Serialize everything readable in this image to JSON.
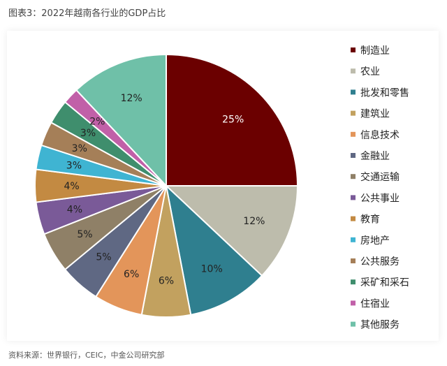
{
  "title": "图表3：2022年越南各行业的GDP占比",
  "source": "资料来源：世界银行，CEIC，中金公司研究部",
  "chart_data": {
    "type": "pie",
    "categories": [
      "制造业",
      "农业",
      "批发和零售",
      "建筑业",
      "信息技术",
      "金融业",
      "交通运输",
      "公共事业",
      "教育",
      "房地产",
      "公共服务",
      "采矿和采石",
      "住宿业",
      "其他服务"
    ],
    "values": [
      25,
      12,
      10,
      6,
      6,
      5,
      5,
      4,
      4,
      3,
      3,
      3,
      2,
      12
    ],
    "labels": [
      "25%",
      "12%",
      "10%",
      "6%",
      "6%",
      "5%",
      "5%",
      "4%",
      "4%",
      "3%",
      "3%",
      "3%",
      "2%",
      "12%"
    ],
    "colors": [
      "#6b0000",
      "#bdbcac",
      "#2f7f8f",
      "#c2a15f",
      "#e3955a",
      "#5f6883",
      "#8f8067",
      "#7a5a98",
      "#c38a42",
      "#3fb4d2",
      "#a57f58",
      "#3f8e6d",
      "#c160a8",
      "#6fc0a8"
    ],
    "legend_position": "right"
  }
}
